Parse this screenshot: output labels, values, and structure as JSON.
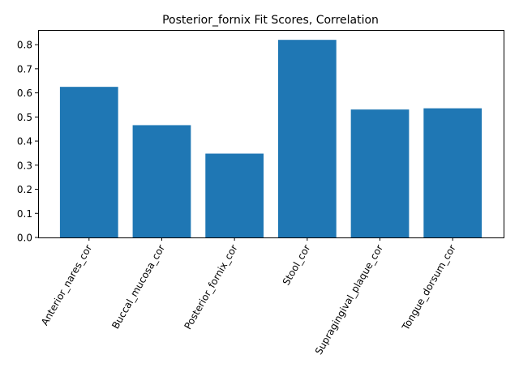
{
  "chart_data": {
    "type": "bar",
    "title": "Posterior_fornix Fit Scores, Correlation",
    "xlabel": "",
    "ylabel": "",
    "categories": [
      "Anterior_nares_cor",
      "Buccal_mucosa_cor",
      "Posterior_fornix_cor",
      "Stool_cor",
      "Supragingival_plaque_cor",
      "Tongue_dorsum_cor"
    ],
    "values": [
      0.625,
      0.466,
      0.348,
      0.82,
      0.531,
      0.536
    ],
    "ylim": [
      0,
      0.861
    ],
    "yticks": [
      0.0,
      0.1,
      0.2,
      0.3,
      0.4,
      0.5,
      0.6,
      0.7,
      0.8
    ],
    "ytick_labels": [
      "0.0",
      "0.1",
      "0.2",
      "0.3",
      "0.4",
      "0.5",
      "0.6",
      "0.7",
      "0.8"
    ],
    "bar_color": "#1f77b4",
    "grid": false,
    "legend": "none"
  }
}
